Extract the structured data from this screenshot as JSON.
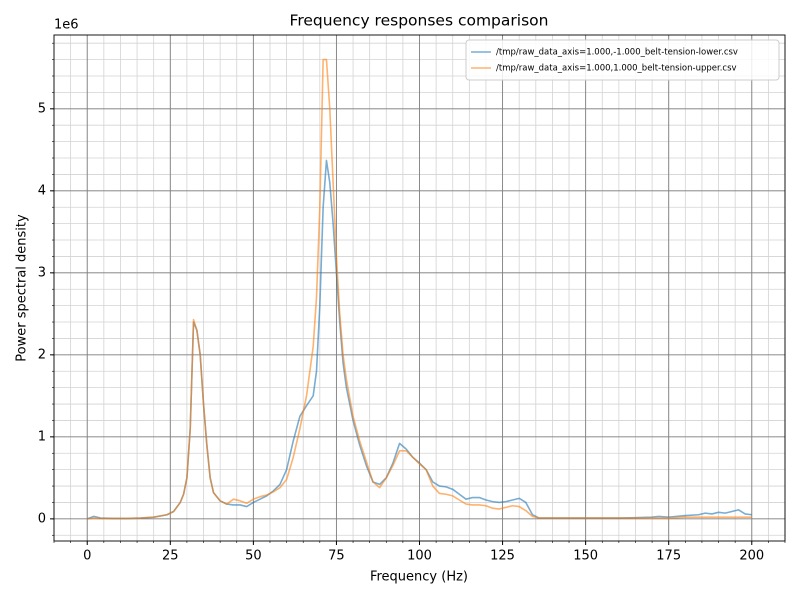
{
  "chart_data": {
    "type": "line",
    "title": "Frequency responses comparison",
    "xlabel": "Frequency (Hz)",
    "ylabel": "Power spectral density",
    "y_offset_label": "1e6",
    "xlim": [
      -10,
      210
    ],
    "ylim": [
      -0.27,
      5.9
    ],
    "xticks": [
      0,
      25,
      50,
      75,
      100,
      125,
      150,
      175,
      200
    ],
    "yticks": [
      0,
      1,
      2,
      3,
      4,
      5
    ],
    "xminorticks": [
      -10,
      -5,
      0,
      5,
      10,
      15,
      20,
      25,
      30,
      35,
      40,
      45,
      50,
      55,
      60,
      65,
      70,
      75,
      80,
      85,
      90,
      95,
      100,
      105,
      110,
      115,
      120,
      125,
      130,
      135,
      140,
      145,
      150,
      155,
      160,
      165,
      170,
      175,
      180,
      185,
      190,
      195,
      200,
      205,
      210
    ],
    "yminorticks": [
      -0.2,
      0,
      0.2,
      0.4,
      0.6,
      0.8,
      1,
      1.2,
      1.4,
      1.6,
      1.8,
      2,
      2.2,
      2.4,
      2.6,
      2.8,
      3,
      3.2,
      3.4,
      3.6,
      3.8,
      4,
      4.2,
      4.4,
      4.6,
      4.8,
      5,
      5.2,
      5.4,
      5.6,
      5.8
    ],
    "grid": true,
    "legend": "upper-right",
    "x": [
      0,
      2,
      4,
      8,
      12,
      16,
      20,
      24,
      26,
      28,
      29,
      30,
      31,
      32,
      33,
      34,
      35,
      36,
      37,
      38,
      40,
      42,
      44,
      46,
      48,
      50,
      52,
      54,
      56,
      58,
      60,
      62,
      64,
      66,
      68,
      69,
      70,
      71,
      72,
      73,
      74,
      75,
      76,
      77,
      78,
      80,
      82,
      84,
      86,
      88,
      90,
      92,
      94,
      96,
      98,
      100,
      102,
      104,
      106,
      108,
      110,
      112,
      114,
      116,
      118,
      120,
      122,
      124,
      126,
      128,
      130,
      132,
      134,
      136,
      140,
      145,
      150,
      160,
      170,
      172,
      175,
      180,
      184,
      186,
      188,
      190,
      192,
      194,
      196,
      198,
      200
    ],
    "series": [
      {
        "name": "/tmp/raw_data_axis=1.000,-1.000_belt-tension-lower.csv",
        "color": "#1f77b4",
        "values": [
          0,
          0.03,
          0.01,
          0.005,
          0.005,
          0.01,
          0.02,
          0.05,
          0.09,
          0.2,
          0.3,
          0.5,
          1.1,
          2.4,
          2.3,
          2.0,
          1.4,
          0.9,
          0.5,
          0.32,
          0.22,
          0.18,
          0.17,
          0.17,
          0.15,
          0.2,
          0.24,
          0.28,
          0.34,
          0.42,
          0.6,
          0.95,
          1.25,
          1.38,
          1.5,
          1.8,
          2.6,
          3.8,
          4.37,
          4.1,
          3.6,
          3.0,
          2.4,
          1.9,
          1.6,
          1.2,
          0.9,
          0.65,
          0.45,
          0.42,
          0.5,
          0.68,
          0.92,
          0.85,
          0.75,
          0.68,
          0.6,
          0.45,
          0.4,
          0.39,
          0.36,
          0.3,
          0.24,
          0.26,
          0.26,
          0.23,
          0.21,
          0.2,
          0.21,
          0.23,
          0.25,
          0.2,
          0.05,
          0.01,
          0.01,
          0.01,
          0.01,
          0.01,
          0.02,
          0.03,
          0.02,
          0.04,
          0.05,
          0.07,
          0.06,
          0.08,
          0.07,
          0.09,
          0.11,
          0.06,
          0.05
        ]
      },
      {
        "name": "/tmp/raw_data_axis=1.000,1.000_belt-tension-upper.csv",
        "color": "#ff7f0e",
        "values": [
          0,
          0.01,
          0.005,
          0.005,
          0.005,
          0.01,
          0.02,
          0.05,
          0.09,
          0.2,
          0.3,
          0.5,
          1.1,
          2.43,
          2.3,
          2.0,
          1.4,
          0.9,
          0.5,
          0.32,
          0.22,
          0.18,
          0.24,
          0.22,
          0.19,
          0.24,
          0.27,
          0.29,
          0.33,
          0.38,
          0.48,
          0.75,
          1.1,
          1.5,
          2.1,
          2.7,
          3.8,
          5.6,
          5.6,
          5.0,
          4.1,
          3.2,
          2.5,
          2.0,
          1.7,
          1.25,
          0.95,
          0.7,
          0.45,
          0.38,
          0.5,
          0.65,
          0.83,
          0.83,
          0.75,
          0.67,
          0.6,
          0.4,
          0.31,
          0.3,
          0.28,
          0.23,
          0.18,
          0.17,
          0.17,
          0.16,
          0.13,
          0.12,
          0.14,
          0.16,
          0.15,
          0.1,
          0.03,
          0.01,
          0.01,
          0.01,
          0.01,
          0.01,
          0.01,
          0.01,
          0.01,
          0.02,
          0.02,
          0.02,
          0.02,
          0.02,
          0.02,
          0.02,
          0.02,
          0.02,
          0.02
        ]
      }
    ]
  }
}
